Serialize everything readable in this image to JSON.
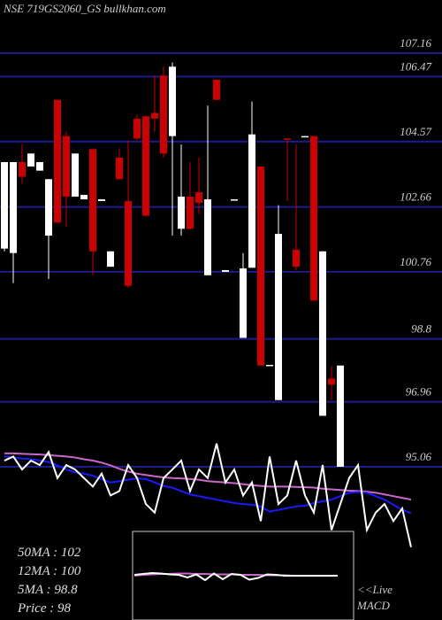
{
  "title": "NSE 719GS2060_GS bullkhan.com",
  "chart_data": {
    "type": "candlestick",
    "ylim": [
      92.34,
      108.71
    ],
    "yticks": [
      107.16,
      106.47,
      104.57,
      102.66,
      100.76,
      98.8,
      96.96,
      95.06
    ],
    "grid": true,
    "grid_color": "#1c1c8c",
    "up_color": "#ffffff",
    "down_color": "#cc0000",
    "open": [
      101.44,
      101.31,
      103.97,
      103.84,
      103.72,
      101.82,
      105.79,
      104.73,
      102.96,
      102.88,
      104.35,
      102.83,
      100.91,
      104.1,
      102.83,
      105.24,
      105.31,
      105.41,
      106.5,
      104.73,
      102.02,
      102.96,
      103.09,
      100.66,
      106.38,
      100.76,
      102.86,
      98.83,
      100.88,
      103.84,
      98.02,
      97.01,
      104.66,
      101.41,
      104.71,
      104.73,
      96.55,
      97.64,
      95.06
    ],
    "high": [
      103.97,
      103.97,
      104.48,
      104.22,
      103.97,
      103.47,
      105.79,
      104.86,
      104.22,
      103.01,
      104.35,
      102.88,
      101.36,
      104.35,
      104.6,
      105.36,
      105.31,
      106.5,
      106.76,
      106.88,
      104.48,
      103.97,
      104.1,
      105.62,
      106.38,
      100.81,
      102.88,
      101.31,
      105.74,
      103.84,
      98.04,
      102.71,
      104.66,
      104.48,
      104.73,
      104.73,
      101.36,
      98.02,
      98.02
    ],
    "low": [
      101.36,
      100.43,
      103.34,
      103.84,
      103.72,
      100.55,
      102.2,
      102.07,
      102.96,
      102.88,
      100.68,
      102.83,
      100.91,
      103.47,
      100.3,
      104.6,
      102.4,
      104.86,
      104.1,
      101.82,
      101.82,
      102.0,
      102.45,
      100.66,
      105.79,
      100.76,
      102.86,
      98.83,
      100.88,
      98.02,
      98.02,
      97.01,
      102.83,
      100.81,
      104.71,
      99.92,
      96.55,
      97.01,
      95.06
    ],
    "close": [
      103.97,
      103.97,
      103.54,
      104.22,
      103.97,
      103.47,
      102.2,
      102.96,
      104.22,
      103.01,
      101.36,
      102.88,
      101.36,
      103.47,
      100.35,
      104.66,
      102.4,
      105.24,
      104.22,
      106.76,
      102.96,
      102.02,
      102.78,
      102.88,
      105.79,
      100.81,
      102.88,
      100.86,
      104.78,
      98.02,
      98.04,
      101.87,
      104.62,
      100.91,
      104.73,
      99.92,
      101.36,
      97.46,
      98.02
    ],
    "lines": [
      {
        "color": "#cc66cc",
        "values": [
          95.45,
          95.45,
          95.44,
          95.43,
          95.42,
          95.4,
          95.38,
          95.36,
          95.33,
          95.28,
          95.24,
          95.18,
          95.1,
          95.0,
          94.92,
          94.86,
          94.82,
          94.78,
          94.75,
          94.73,
          94.72,
          94.7,
          94.68,
          94.64,
          94.62,
          94.6,
          94.58,
          94.55,
          94.52,
          94.5,
          94.48,
          94.48,
          94.48,
          94.47,
          94.46,
          94.45,
          94.42,
          94.4,
          94.38,
          94.36,
          94.35,
          94.33,
          94.3,
          94.25,
          94.2,
          94.15,
          94.1
        ]
      },
      {
        "color": "#1a1aff",
        "values": [
          95.36,
          95.33,
          95.3,
          95.28,
          95.24,
          95.2,
          95.1,
          94.98,
          94.9,
          94.86,
          94.8,
          94.7,
          94.6,
          94.64,
          94.68,
          94.72,
          94.7,
          94.6,
          94.5,
          94.45,
          94.35,
          94.25,
          94.2,
          94.15,
          94.1,
          94.05,
          94.0,
          93.97,
          93.95,
          93.9,
          93.75,
          93.8,
          93.85,
          93.9,
          93.92,
          94.0,
          94.05,
          94.1,
          94.2,
          94.3,
          94.32,
          94.3,
          94.2,
          94.1,
          93.95,
          93.8,
          93.7
        ]
      },
      {
        "color": "#ffffff",
        "values": [
          95.24,
          95.36,
          94.98,
          95.24,
          95.11,
          95.49,
          94.73,
          95.11,
          94.98,
          94.73,
          94.48,
          94.86,
          94.22,
          94.35,
          95.11,
          94.73,
          93.97,
          93.72,
          94.73,
          94.98,
          95.24,
          94.35,
          94.98,
          94.73,
          95.74,
          94.6,
          94.98,
          94.22,
          94.6,
          93.47,
          95.36,
          93.97,
          94.22,
          95.24,
          94.22,
          93.72,
          95.11,
          93.21,
          93.97,
          94.73,
          95.11,
          93.21,
          93.72,
          93.97,
          93.47,
          93.84,
          92.71
        ]
      }
    ],
    "macd": {
      "ylim": [
        -1,
        1
      ],
      "series": [
        {
          "color": "#cc66cc",
          "values": [
            0,
            0.02,
            0.03,
            0.04,
            0.04,
            0.05,
            0.05,
            0.04,
            0.04,
            0.03,
            0.03,
            0.03,
            0.02,
            0.02,
            0.02,
            0.01,
            0.01,
            0.01,
            0,
            0,
            0,
            0,
            0,
            0
          ]
        },
        {
          "color": "#ffffff",
          "values": [
            0.02,
            0.04,
            0.06,
            0.05,
            0.03,
            0.02,
            -0.04,
            0.03,
            -0.1,
            0.05,
            -0.08,
            0.04,
            0.02,
            -0.09,
            -0.05,
            0.03,
            0.02,
            0,
            0,
            0,
            0,
            0,
            0,
            0
          ]
        }
      ]
    }
  },
  "stats": [
    "50MA : 102",
    "12MA : 100",
    "5MA : 98.8",
    "Price   : 98"
  ],
  "footer": {
    "live": "<<Live",
    "macd": "MACD"
  }
}
